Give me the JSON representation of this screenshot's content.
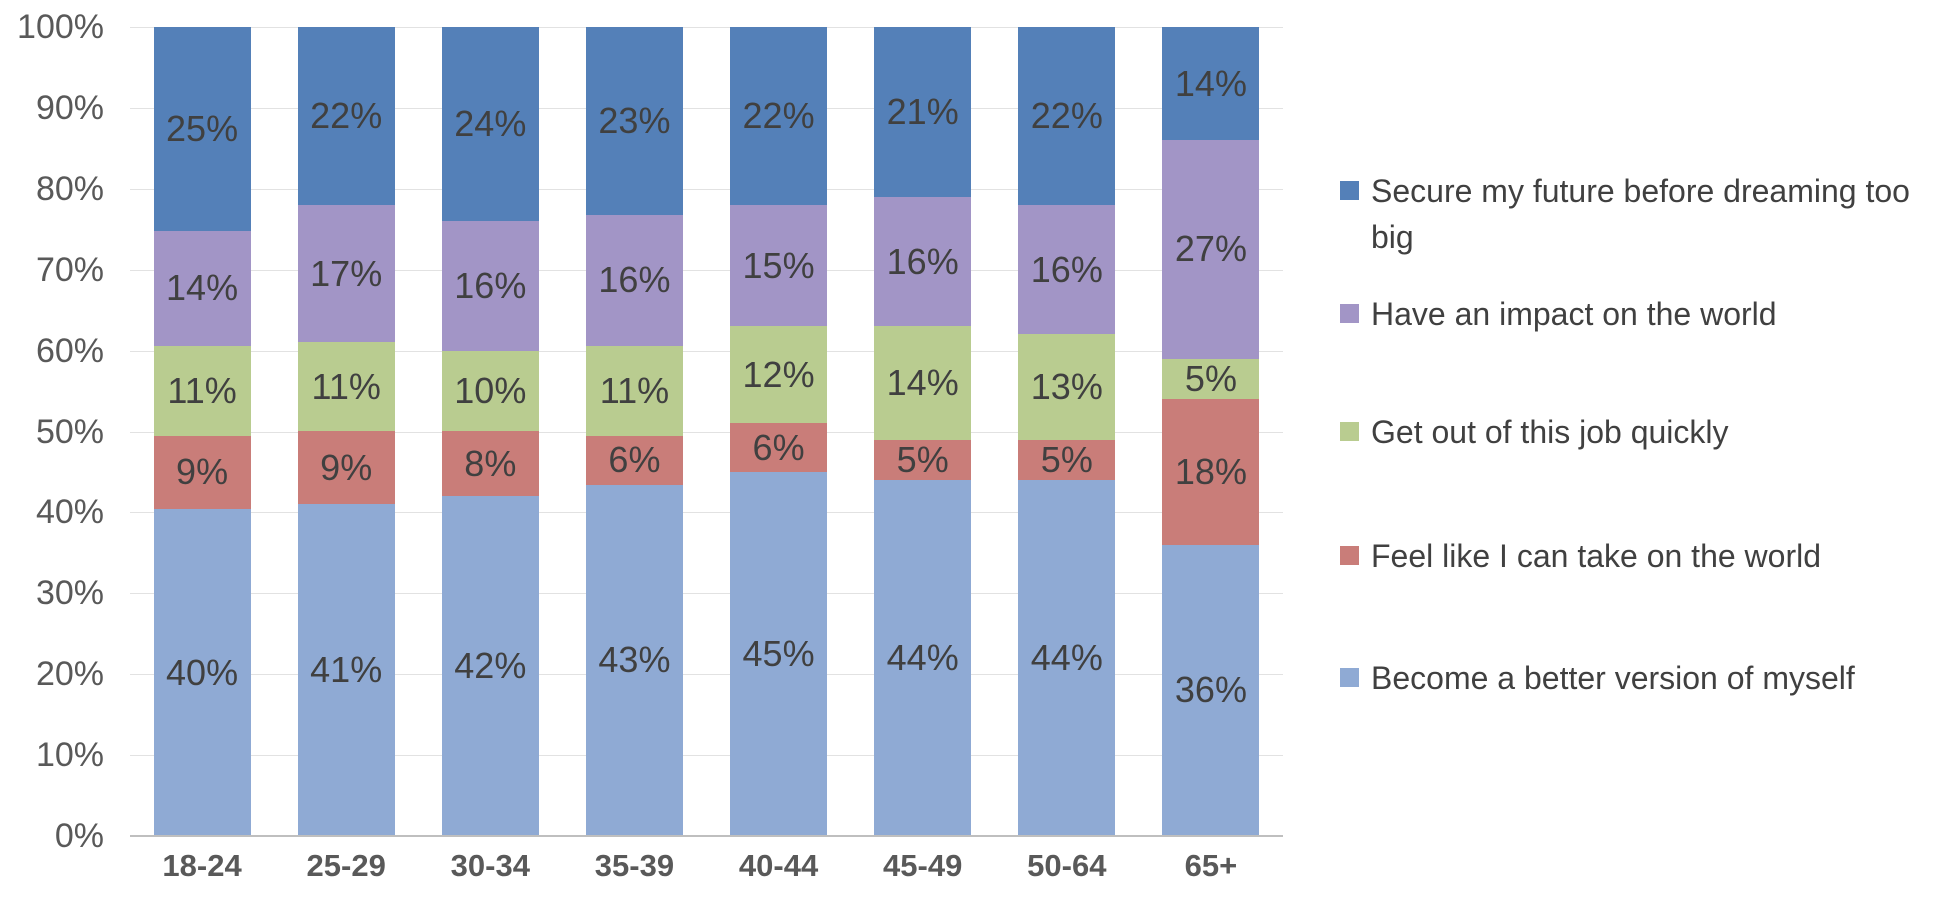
{
  "chart_data": {
    "type": "bar",
    "stacked": true,
    "title": "",
    "xlabel": "",
    "ylabel": "",
    "ylim": [
      0,
      100
    ],
    "grid": true,
    "legend_position": "right",
    "label_suffix": "%",
    "categories": [
      "18-24",
      "25-29",
      "30-34",
      "35-39",
      "40-44",
      "45-49",
      "50-64",
      "65+"
    ],
    "y_ticks": [
      "100%",
      "90%",
      "80%",
      "70%",
      "60%",
      "50%",
      "40%",
      "30%",
      "20%",
      "10%",
      "0%"
    ],
    "series": [
      {
        "name": "Secure my future before dreaming too big",
        "color": "#5480B8",
        "values": [
          25,
          22,
          24,
          23,
          22,
          21,
          22,
          14
        ]
      },
      {
        "name": "Have an impact on the world",
        "color": "#A295C6",
        "values": [
          14,
          17,
          16,
          16,
          15,
          16,
          16,
          27
        ]
      },
      {
        "name": "Get out of this job quickly",
        "color": "#B9CC90",
        "values": [
          11,
          11,
          10,
          11,
          12,
          14,
          13,
          5
        ]
      },
      {
        "name": "Feel like I can take on the world",
        "color": "#C97D79",
        "values": [
          9,
          9,
          8,
          6,
          6,
          5,
          5,
          18
        ]
      },
      {
        "name": "Become a better version of myself",
        "color": "#8FAAD4",
        "values": [
          40,
          41,
          42,
          43,
          45,
          44,
          44,
          36
        ]
      }
    ]
  },
  "colors": {
    "background": "#FFFFFF",
    "gridline": "#E2E2E2",
    "axis_line": "#BFBFBF",
    "bar_label_text": "#404040",
    "axis_text": "#595959",
    "legend_text": "#404040"
  }
}
